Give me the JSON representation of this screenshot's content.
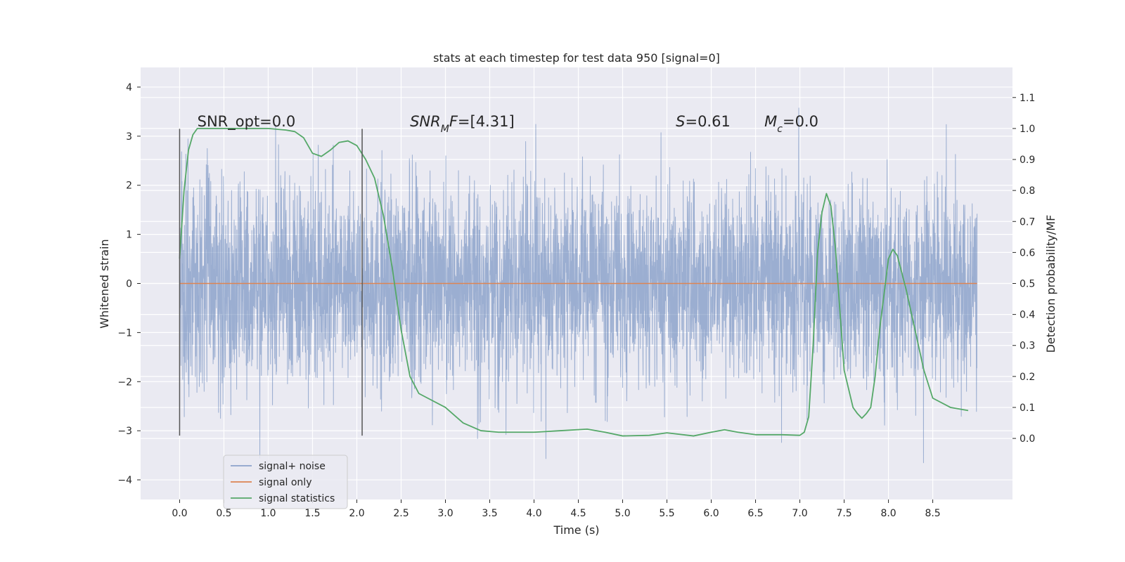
{
  "chart_data": {
    "type": "line",
    "title": "stats at each timestep for test data 950 [signal=0]",
    "xlabel": "Time (s)",
    "ylabel": "Whitened strain",
    "y2label": "Detection probability/MF",
    "xlim": [
      -0.44,
      9.4
    ],
    "ylim": [
      -4.4,
      4.4
    ],
    "y2lim": [
      -0.197,
      1.197
    ],
    "xticks": [
      0.0,
      0.5,
      1.0,
      1.5,
      2.0,
      2.5,
      3.0,
      3.5,
      4.0,
      4.5,
      5.0,
      5.5,
      6.0,
      6.5,
      7.0,
      7.5,
      8.0,
      8.5
    ],
    "xtick_labels": [
      "0.0",
      "0.5",
      "1.0",
      "1.5",
      "2.0",
      "2.5",
      "3.0",
      "3.5",
      "4.0",
      "4.5",
      "5.0",
      "5.5",
      "6.0",
      "6.5",
      "7.0",
      "7.5",
      "8.0",
      "8.5"
    ],
    "yticks": [
      -4,
      -3,
      -2,
      -1,
      0,
      1,
      2,
      3,
      4
    ],
    "ytick_labels": [
      "−4",
      "−3",
      "−2",
      "−1",
      "0",
      "1",
      "2",
      "3",
      "4"
    ],
    "y2ticks": [
      0.0,
      0.1,
      0.2,
      0.3,
      0.4,
      0.5,
      0.6,
      0.7,
      0.8,
      0.9,
      1.0,
      1.1
    ],
    "y2tick_labels": [
      "0.0",
      "0.1",
      "0.2",
      "0.3",
      "0.4",
      "0.5",
      "0.6",
      "0.7",
      "0.8",
      "0.9",
      "1.0",
      "1.1"
    ],
    "grid": true,
    "legend": "lower-left",
    "vlines": [
      0.0,
      2.06
    ],
    "vline_range": [
      -3.1,
      3.15
    ],
    "annotations": [
      {
        "x": 0.2,
        "y": 3.2,
        "parts": [
          {
            "t": "SNR_opt=0.0",
            "i": false
          }
        ]
      },
      {
        "x": 2.6,
        "y": 3.2,
        "parts": [
          {
            "t": "SNR",
            "i": true
          },
          {
            "t": "M",
            "i": true,
            "sub": true
          },
          {
            "t": "F",
            "i": true
          },
          {
            "t": "=[4.31]",
            "i": false
          }
        ]
      },
      {
        "x": 5.6,
        "y": 3.2,
        "parts": [
          {
            "t": "S",
            "i": true
          },
          {
            "t": "=0.61",
            "i": false
          }
        ]
      },
      {
        "x": 6.6,
        "y": 3.2,
        "parts": [
          {
            "t": "M",
            "i": true
          },
          {
            "t": "c",
            "i": true,
            "sub": true
          },
          {
            "t": "=0.0",
            "i": false
          }
        ]
      }
    ],
    "series": [
      {
        "name": "signal+ noise",
        "color": "#4c72b0",
        "axis": "left",
        "kind": "noise",
        "x_range": [
          0.0,
          9.0
        ],
        "std": 1.0,
        "seed": 950,
        "points": 4096
      },
      {
        "name": "signal only",
        "color": "#dd8452",
        "axis": "left",
        "x": [
          0.0,
          9.0
        ],
        "y": [
          0.0,
          0.0
        ]
      },
      {
        "name": "signal statistics",
        "color": "#55a868",
        "axis": "right",
        "x": [
          0.0,
          0.05,
          0.1,
          0.15,
          0.2,
          0.3,
          0.5,
          0.8,
          1.0,
          1.2,
          1.3,
          1.4,
          1.5,
          1.6,
          1.7,
          1.8,
          1.9,
          2.0,
          2.1,
          2.2,
          2.3,
          2.4,
          2.5,
          2.6,
          2.7,
          2.8,
          3.0,
          3.2,
          3.4,
          3.6,
          4.0,
          4.3,
          4.6,
          4.8,
          5.0,
          5.3,
          5.5,
          5.8,
          6.0,
          6.15,
          6.3,
          6.5,
          6.8,
          7.0,
          7.05,
          7.1,
          7.15,
          7.2,
          7.25,
          7.3,
          7.35,
          7.4,
          7.45,
          7.5,
          7.6,
          7.65,
          7.7,
          7.75,
          7.8,
          7.85,
          7.9,
          8.0,
          8.05,
          8.1,
          8.2,
          8.3,
          8.4,
          8.5,
          8.7,
          8.9
        ],
        "y": [
          0.58,
          0.8,
          0.93,
          0.98,
          1.0,
          1.0,
          1.0,
          1.0,
          1.0,
          0.995,
          0.99,
          0.97,
          0.92,
          0.91,
          0.93,
          0.955,
          0.96,
          0.945,
          0.9,
          0.84,
          0.72,
          0.55,
          0.35,
          0.2,
          0.145,
          0.13,
          0.1,
          0.05,
          0.025,
          0.02,
          0.02,
          0.025,
          0.03,
          0.02,
          0.008,
          0.01,
          0.018,
          0.008,
          0.02,
          0.028,
          0.02,
          0.012,
          0.012,
          0.01,
          0.02,
          0.07,
          0.3,
          0.6,
          0.73,
          0.79,
          0.75,
          0.62,
          0.42,
          0.22,
          0.1,
          0.08,
          0.065,
          0.08,
          0.1,
          0.2,
          0.35,
          0.58,
          0.61,
          0.59,
          0.48,
          0.35,
          0.22,
          0.13,
          0.1,
          0.09
        ]
      }
    ]
  }
}
